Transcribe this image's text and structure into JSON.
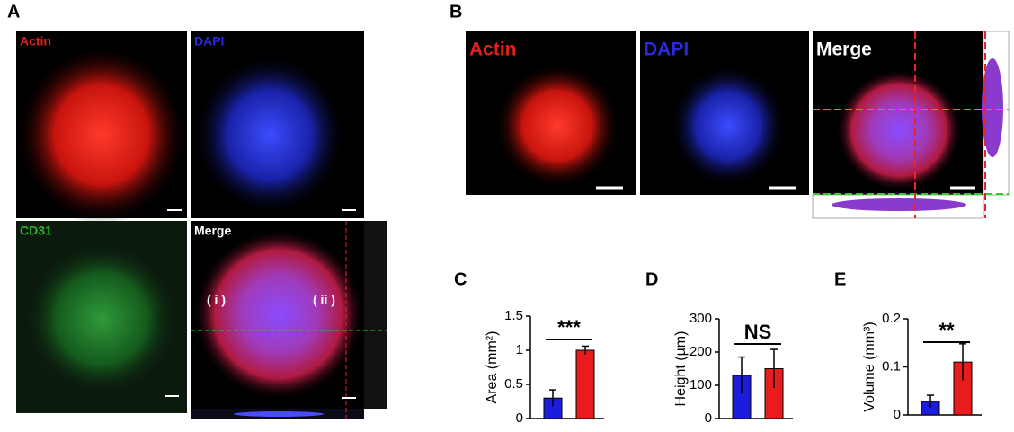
{
  "panels": {
    "A": {
      "label": "A",
      "images": [
        "Actin",
        "DAPI",
        "CD31",
        "Merge"
      ],
      "annotations": [
        "( i )",
        "( ii )"
      ]
    },
    "B": {
      "label": "B",
      "images": [
        "Actin",
        "DAPI",
        "Merge"
      ]
    }
  },
  "chart_data": [
    {
      "type": "bar",
      "panel_label": "C",
      "ylabel": "Area (mm²)",
      "categories": [
        null,
        null
      ],
      "values": [
        0.3,
        1.0
      ],
      "errors": [
        0.12,
        0.06
      ],
      "colors": [
        "#1c1cdc",
        "#e81c1c"
      ],
      "ylim": [
        0,
        1.5
      ],
      "yticks": [
        0,
        0.5,
        1,
        1.5
      ],
      "significance": "***"
    },
    {
      "type": "bar",
      "panel_label": "D",
      "ylabel": "Height (µm)",
      "categories": [
        null,
        null
      ],
      "values": [
        130,
        150
      ],
      "errors": [
        55,
        58
      ],
      "colors": [
        "#1c1cdc",
        "#e81c1c"
      ],
      "ylim": [
        0,
        300
      ],
      "yticks": [
        0,
        100,
        200,
        300
      ],
      "significance": "NS"
    },
    {
      "type": "bar",
      "panel_label": "E",
      "ylabel": "Volume (mm³)",
      "categories": [
        null,
        null
      ],
      "values": [
        0.028,
        0.11
      ],
      "errors": [
        0.013,
        0.038
      ],
      "colors": [
        "#1c1cdc",
        "#e81c1c"
      ],
      "ylim": [
        0,
        0.2
      ],
      "yticks": [
        0,
        0.1,
        0.2
      ],
      "significance": "**"
    }
  ]
}
